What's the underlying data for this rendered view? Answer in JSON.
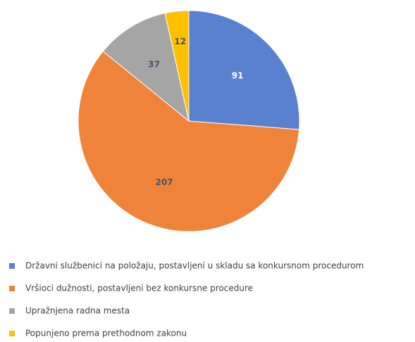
{
  "chart_data": {
    "type": "pie",
    "categories": [
      "Državni službenici na položaju, postavljeni u skladu sa konkursnom procedurom",
      "Vršioci dužnosti, postavljeni bez konkursne procedure",
      "Upražnjena radna mesta",
      "Popunjeno prema prethodnom zakonu"
    ],
    "values": [
      91,
      207,
      37,
      12
    ],
    "colors": [
      "#5a80d0",
      "#f0833a",
      "#a5a5a5",
      "#ffc000"
    ],
    "legend": "bottom"
  }
}
